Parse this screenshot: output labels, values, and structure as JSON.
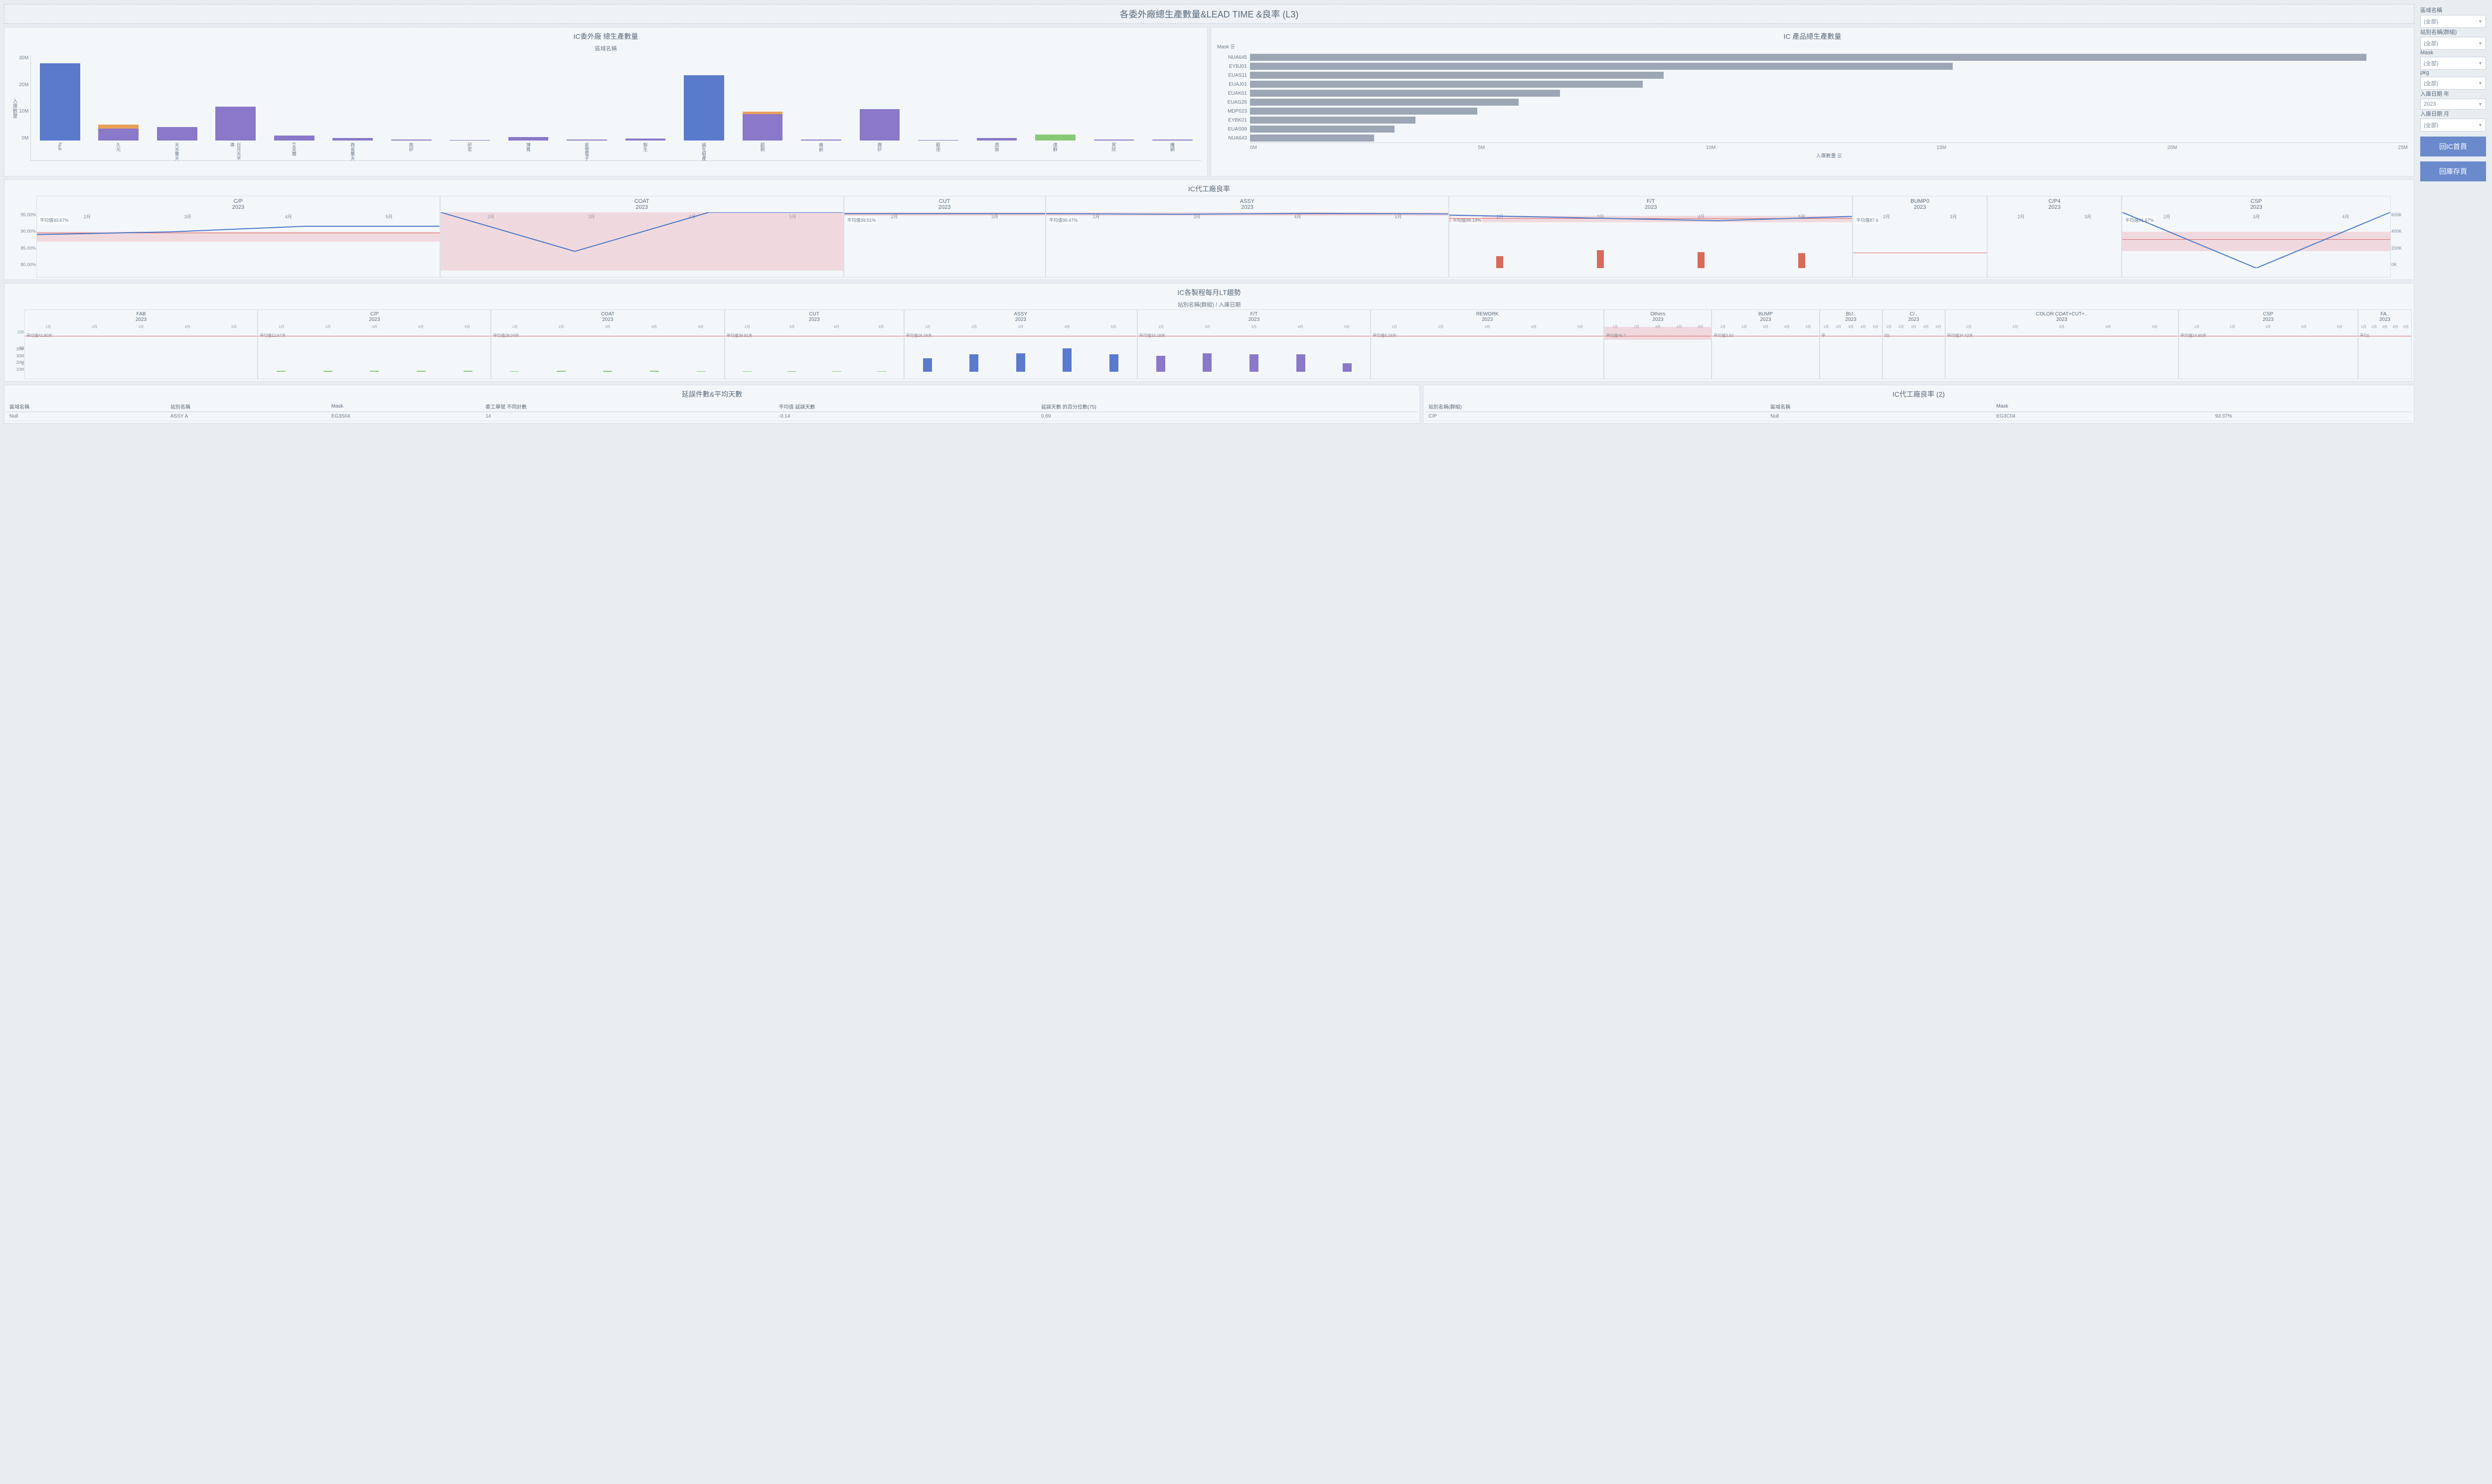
{
  "title": "各委外廠總生產數量&LEAD TIME &良率 (L3)",
  "colors": {
    "bar_purple": "#8a78c8",
    "bar_blue": "#5a7acc",
    "bar_orange": "#e8a05a",
    "bar_green": "#8ac878",
    "hbar": "#9ca6b4",
    "line_blue": "#4a78c8",
    "line_red": "#d86a6a",
    "bar_red": "#d86a5a",
    "pink_band": "rgba(232,160,170,0.35)",
    "nav_btn": "#6a8acc"
  },
  "chart1": {
    "title": "IC委外廠 總生產數量",
    "subtitle": "區域名稱",
    "ylabel": "入庫數量",
    "yticks": [
      "30M",
      "20M",
      "10M",
      "0M"
    ],
    "ymax": 35,
    "categories": [
      "Null",
      "久元",
      "天水華天",
      "日月光半導",
      "艾克爾",
      "西省華天",
      "南矽",
      "矽宏",
      "博寬",
      "星瑩電子",
      "製生",
      "誠生組產",
      "超剔",
      "維創",
      "微矽",
      "歐佳",
      "潤伽",
      "偉群",
      "冥欣",
      "纖穎"
    ],
    "stacks": [
      [
        {
          "v": 32,
          "c": "#5a7acc"
        },
        {
          "v": 0,
          "c": "#e8a05a"
        }
      ],
      [
        {
          "v": 5,
          "c": "#8a78c8"
        },
        {
          "v": 1.5,
          "c": "#e8a05a"
        }
      ],
      [
        {
          "v": 5.5,
          "c": "#8a78c8"
        }
      ],
      [
        {
          "v": 14,
          "c": "#8a78c8"
        }
      ],
      [
        {
          "v": 2,
          "c": "#8a78c8"
        }
      ],
      [
        {
          "v": 1,
          "c": "#8a78c8"
        }
      ],
      [
        {
          "v": 0.5,
          "c": "#8a78c8"
        }
      ],
      [
        {
          "v": 0.3,
          "c": "#8a78c8"
        }
      ],
      [
        {
          "v": 1.5,
          "c": "#8a78c8"
        }
      ],
      [
        {
          "v": 0.5,
          "c": "#8a78c8"
        }
      ],
      [
        {
          "v": 0.8,
          "c": "#8a78c8"
        }
      ],
      [
        {
          "v": 27,
          "c": "#5a7acc"
        },
        {
          "v": 0,
          "c": "#e8a05a"
        }
      ],
      [
        {
          "v": 11,
          "c": "#8a78c8"
        },
        {
          "v": 1,
          "c": "#e8a05a"
        }
      ],
      [
        {
          "v": 0.5,
          "c": "#8a78c8"
        }
      ],
      [
        {
          "v": 13,
          "c": "#8a78c8"
        }
      ],
      [
        {
          "v": 0.3,
          "c": "#8a78c8"
        }
      ],
      [
        {
          "v": 1,
          "c": "#8a78c8"
        }
      ],
      [
        {
          "v": 2.5,
          "c": "#8ac878"
        }
      ],
      [
        {
          "v": 0.4,
          "c": "#8a78c8"
        }
      ],
      [
        {
          "v": 0.4,
          "c": "#8a78c8"
        }
      ]
    ]
  },
  "chart2": {
    "title": "IC 產品總生產數量",
    "mask_label": "Mask",
    "xlabel": "入庫數量",
    "xticks": [
      "0M",
      "5M",
      "10M",
      "15M",
      "20M",
      "25M"
    ],
    "xmax": 28,
    "rows": [
      {
        "label": "NUA645",
        "v": 27
      },
      {
        "label": "EYBJ01",
        "v": 17
      },
      {
        "label": "EUAS11",
        "v": 10
      },
      {
        "label": "EUAJ01",
        "v": 9.5
      },
      {
        "label": "EUAK01",
        "v": 7.5
      },
      {
        "label": "EUAG26",
        "v": 6.5
      },
      {
        "label": "MDP023",
        "v": 5.5
      },
      {
        "label": "EYBK01",
        "v": 4
      },
      {
        "label": "EUAS09",
        "v": 3.5
      },
      {
        "label": "NUA643",
        "v": 3
      }
    ]
  },
  "yield": {
    "title": "IC代工廠良率",
    "ylabel": "平均Yld",
    "yticks": [
      "95.00%",
      "90.00%",
      "85.00%",
      "80.00%"
    ],
    "yticks_r": [
      "600K",
      "400K",
      "200K",
      "0K"
    ],
    "ylabel_r": "Ng Qe",
    "months": [
      "2月",
      "3月",
      "4月",
      "5月"
    ],
    "months3": [
      "2月",
      "3月",
      "4月"
    ],
    "months2": [
      "2月",
      "3月"
    ],
    "panels": [
      {
        "name": "C/P",
        "year": "2023",
        "avg": "平均值93.67%",
        "line": [
          92,
          93,
          95,
          95
        ],
        "band_top": 94,
        "band_h": 3,
        "bars": []
      },
      {
        "name": "COAT",
        "year": "2023",
        "avg": "",
        "line": [
          100,
          86,
          100,
          100
        ],
        "band_top": 100,
        "band_h": 18,
        "bars": []
      },
      {
        "name": "CUT",
        "year": "2023",
        "avg": "平均值99.51%",
        "line": [
          99.5,
          99.5
        ],
        "band_top": 100,
        "band_h": 1,
        "bars": [],
        "months": "months2"
      },
      {
        "name": "ASSY",
        "year": "2023",
        "avg": "平均值99.47%",
        "line": [
          99.5,
          99.3,
          99.6,
          99.4
        ],
        "band_top": 100,
        "band_h": 1,
        "bars": []
      },
      {
        "name": "F/T",
        "year": "2023",
        "avg": "平均值98.19%",
        "line": [
          99,
          98,
          97,
          98.5
        ],
        "band_top": 99,
        "band_h": 2,
        "bars": [
          12,
          18,
          16,
          15
        ]
      },
      {
        "name": "BUMP0",
        "year": "2023",
        "avg": "平均值87.6",
        "line": [],
        "band_top": 0,
        "band_h": 0,
        "bars": [],
        "months": "months2"
      },
      {
        "name": "C/P4",
        "year": "2023",
        "avg": "",
        "line": [],
        "band_top": 0,
        "band_h": 0,
        "bars": [],
        "months": "months2"
      },
      {
        "name": "CSP",
        "year": "2023",
        "avg": "平均值91.67%",
        "line": [
          100,
          80,
          100
        ],
        "band_top": 94,
        "band_h": 6,
        "bars": [],
        "months": "months3"
      }
    ]
  },
  "lt": {
    "title": "IC各製程每月LT趨勢",
    "subtitle": "站別名稱(群組) / 入庫日期",
    "y_upper": [
      "100",
      "50",
      "0"
    ],
    "y_lower": [
      "39M",
      "30M",
      "20M",
      "10M"
    ],
    "months5": [
      "1月",
      "2月",
      "3月",
      "4月",
      "5月"
    ],
    "panels": [
      {
        "name": "FAB",
        "year": "2023",
        "avg": "平均值42.80天",
        "bars": [
          0,
          0,
          0,
          0,
          0
        ],
        "color": "#5a7acc"
      },
      {
        "name": "C/P",
        "year": "2023",
        "avg": "平均值12.67天",
        "bars": [
          2,
          2,
          2,
          2,
          2
        ],
        "color": "#8ac878"
      },
      {
        "name": "COAT",
        "year": "2023",
        "avg": "平均值29.04天",
        "bars": [
          1,
          2,
          2,
          2,
          1
        ],
        "color": "#8ac878"
      },
      {
        "name": "CUT",
        "year": "2023",
        "avg": "平均值39.91天",
        "bars": [
          1,
          1,
          1,
          1
        ],
        "color": "#8ac878",
        "months": [
          "2月",
          "3月",
          "4月",
          "5月"
        ]
      },
      {
        "name": "ASSY",
        "year": "2023",
        "avg": "平均值16.16天",
        "bars": [
          22,
          28,
          30,
          38,
          28
        ],
        "color": "#5a7acc"
      },
      {
        "name": "F/T",
        "year": "2023",
        "avg": "平均值10.19天",
        "bars": [
          26,
          30,
          28,
          28,
          14
        ],
        "color": "#8a78c8"
      },
      {
        "name": "REWORK",
        "year": "2023",
        "avg": "平均值5.16天",
        "bars": [
          0,
          0,
          0,
          0,
          0
        ],
        "color": "#5a7acc"
      },
      {
        "name": "Others",
        "year": "2023",
        "avg": "平均值49.7",
        "bars": [
          0,
          0
        ],
        "color": "#5a7acc",
        "band": true
      },
      {
        "name": "BUMP",
        "year": "2023",
        "avg": "平均值3.50",
        "bars": [
          0,
          0
        ],
        "color": "#5a7acc"
      },
      {
        "name": "BU..",
        "year": "2023",
        "avg": "平",
        "bars": [
          0
        ],
        "color": "#5a7acc"
      },
      {
        "name": "C/..",
        "year": "2023",
        "avg": "均(",
        "bars": [
          0
        ],
        "color": "#5a7acc"
      },
      {
        "name": "COLOR COAT+CUT+..",
        "year": "2023",
        "avg": "平均值34.42天",
        "bars": [
          0,
          0,
          0,
          0,
          0
        ],
        "color": "#5a7acc"
      },
      {
        "name": "CSP",
        "year": "2023",
        "avg": "平均值14.60天",
        "bars": [
          0,
          0,
          0,
          0
        ],
        "color": "#5a7acc"
      },
      {
        "name": "FA..",
        "year": "2023",
        "avg": "平均(",
        "bars": [
          0
        ],
        "color": "#5a7acc"
      }
    ]
  },
  "table1": {
    "title": "延誤件數&平均天數",
    "headers": [
      "區域名稱",
      "站別名稱",
      "Mask",
      "委工單號 不同計數",
      "平均值 延誤天數",
      "延誤天數 的百分位數(75)"
    ],
    "rows": [
      [
        "Null",
        "ASSY A",
        "EG3S04",
        "14",
        "-0.14",
        "0.69"
      ]
    ]
  },
  "table2": {
    "title": "IC代工廠良率 (2)",
    "headers": [
      "站別名稱(群組)",
      "區域名稱",
      "Mask",
      ""
    ],
    "rows": [
      [
        "C/P",
        "Null",
        "EG3C04",
        "93.37%"
      ]
    ]
  },
  "filters": [
    {
      "label": "區域名稱",
      "value": "(全部)"
    },
    {
      "label": "站別名稱(群組)",
      "value": "(全部)"
    },
    {
      "label": "Mask",
      "value": "(全部)"
    },
    {
      "label": "pkg",
      "value": "(全部)"
    },
    {
      "label": "入庫日期 年",
      "value": "2023"
    },
    {
      "label": "入庫日期 月",
      "value": "(全部)"
    }
  ],
  "nav": {
    "home": "回IC首頁",
    "stock": "回庫存頁"
  }
}
